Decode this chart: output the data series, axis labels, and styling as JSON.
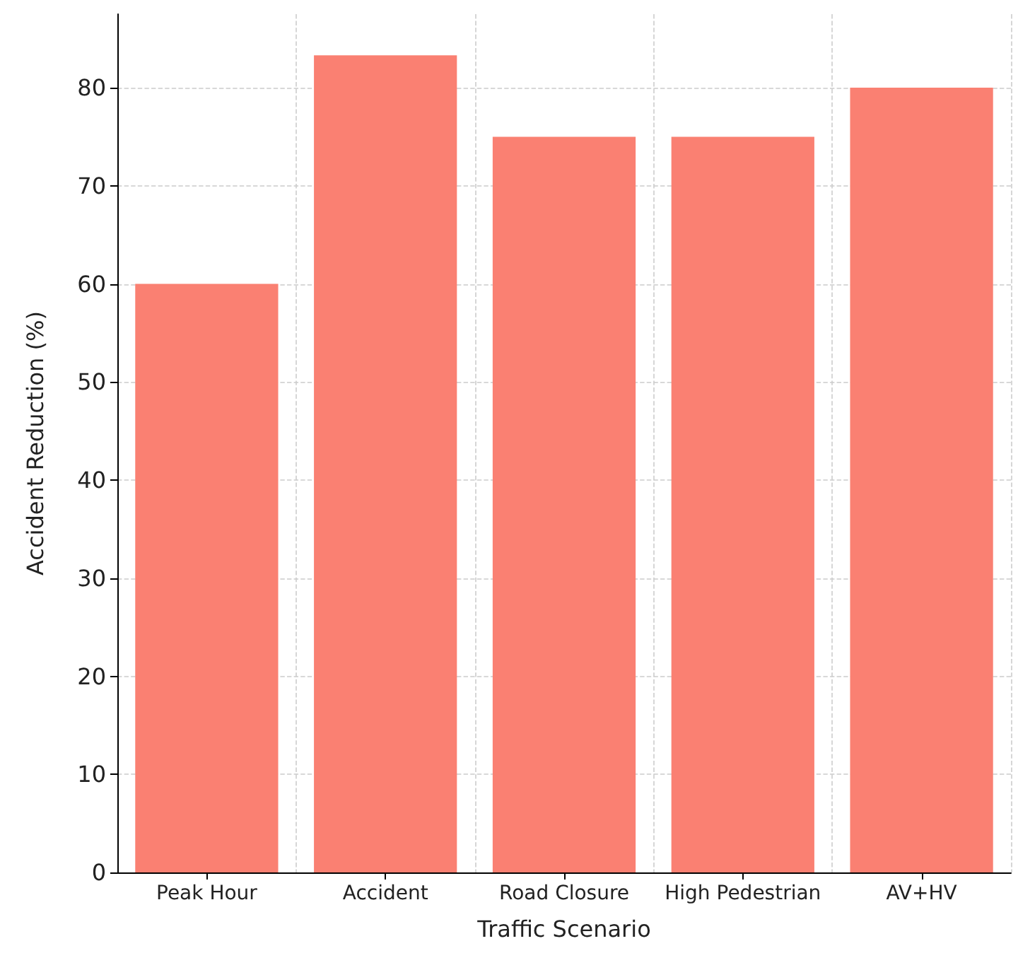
{
  "chart_data": {
    "type": "bar",
    "xlabel": "Traffic Scenario",
    "ylabel": "Accident Reduction (%)",
    "categories": [
      "Peak Hour",
      "Accident",
      "Road Closure",
      "High Pedestrian",
      "AV+HV"
    ],
    "values": [
      60,
      83.3,
      75,
      75,
      80
    ],
    "color": "#fa8072",
    "ylim": [
      0,
      87.5
    ],
    "yticks": [
      0,
      10,
      20,
      30,
      40,
      50,
      60,
      70,
      80
    ],
    "grid": true
  }
}
